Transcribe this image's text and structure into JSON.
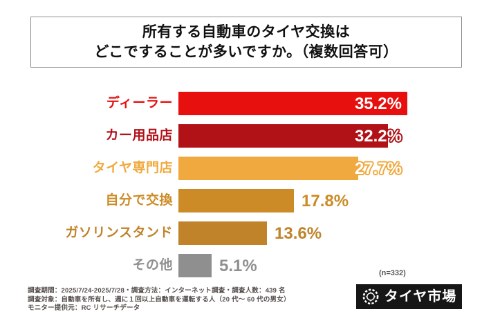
{
  "title": {
    "line1": "所有する自動車のタイヤ交換は",
    "line2": "どこですることが多いですか。（複数回答可）"
  },
  "chart_data": {
    "type": "bar",
    "orientation": "horizontal",
    "title": "所有する自動車のタイヤ交換はどこですることが多いですか。（複数回答可）",
    "categories": [
      "ディーラー",
      "カー用品店",
      "タイヤ専門店",
      "自分で交換",
      "ガソリンスタンド",
      "その他"
    ],
    "values": [
      35.2,
      32.2,
      27.7,
      17.8,
      13.6,
      5.1
    ],
    "value_labels": [
      "35.2%",
      "32.2%",
      "27.7%",
      "17.8%",
      "13.6%",
      "5.1%"
    ],
    "colors": [
      "#e8100e",
      "#b11218",
      "#f0a93e",
      "#cc8b26",
      "#c0832a",
      "#8f8f8f"
    ],
    "value_label_modes": [
      "anchor-right",
      "anchor-right",
      "anchor-right",
      "after-bar",
      "after-bar",
      "after-bar"
    ],
    "xlim": [
      0,
      37
    ],
    "grid": false,
    "legend": "none",
    "sample_note": "(n=332)",
    "n": 332
  },
  "footer": {
    "line1": "調査期間：2025/7/24-2025/7/28・調査方法：インターネット調査・調査人数：439 名",
    "line2": "調査対象：自動車を所有し、週に１回以上自動車を運転する人（20 代～ 60 代の男女）",
    "line3": "モニター提供元：RC リサーチデータ"
  },
  "logo": {
    "text": "タイヤ市場",
    "icon": "tire-icon",
    "background": "#161616"
  }
}
